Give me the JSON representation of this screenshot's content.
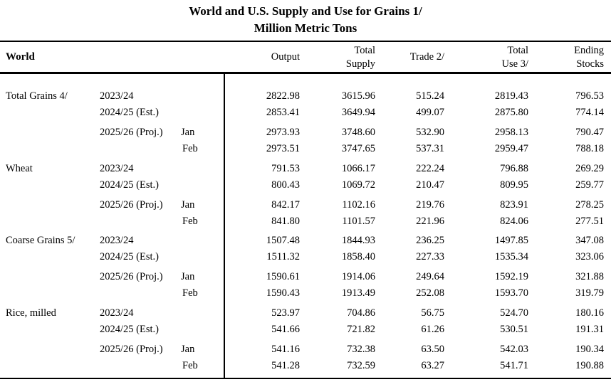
{
  "title": "World and U.S. Supply and Use for Grains  1/",
  "subtitle": "Million Metric Tons",
  "header": {
    "region": "World",
    "columns": [
      [
        "",
        "Output"
      ],
      [
        "Total",
        "Supply"
      ],
      [
        "",
        "Trade 2/"
      ],
      [
        "Total",
        "Use 3/"
      ],
      [
        "Ending",
        "Stocks"
      ]
    ]
  },
  "groups": [
    {
      "name": "Total Grains 4/",
      "rows": [
        {
          "year": "2023/24",
          "month": "",
          "values": [
            "2822.98",
            "3615.96",
            "515.24",
            "2819.43",
            "796.53"
          ]
        },
        {
          "year": "2024/25 (Est.)",
          "month": "",
          "values": [
            "2853.41",
            "3649.94",
            "499.07",
            "2875.80",
            "774.14"
          ]
        },
        {
          "year": "2025/26 (Proj.)",
          "month": "Jan",
          "values": [
            "2973.93",
            "3748.60",
            "532.90",
            "2958.13",
            "790.47"
          ]
        },
        {
          "year": "",
          "month": "Feb",
          "values": [
            "2973.51",
            "3747.65",
            "537.31",
            "2959.47",
            "788.18"
          ]
        }
      ]
    },
    {
      "name": "Wheat",
      "rows": [
        {
          "year": "2023/24",
          "month": "",
          "values": [
            "791.53",
            "1066.17",
            "222.24",
            "796.88",
            "269.29"
          ]
        },
        {
          "year": "2024/25 (Est.)",
          "month": "",
          "values": [
            "800.43",
            "1069.72",
            "210.47",
            "809.95",
            "259.77"
          ]
        },
        {
          "year": "2025/26 (Proj.)",
          "month": "Jan",
          "values": [
            "842.17",
            "1102.16",
            "219.76",
            "823.91",
            "278.25"
          ]
        },
        {
          "year": "",
          "month": "Feb",
          "values": [
            "841.80",
            "1101.57",
            "221.96",
            "824.06",
            "277.51"
          ]
        }
      ]
    },
    {
      "name": "Coarse Grains 5/",
      "rows": [
        {
          "year": "2023/24",
          "month": "",
          "values": [
            "1507.48",
            "1844.93",
            "236.25",
            "1497.85",
            "347.08"
          ]
        },
        {
          "year": "2024/25 (Est.)",
          "month": "",
          "values": [
            "1511.32",
            "1858.40",
            "227.33",
            "1535.34",
            "323.06"
          ]
        },
        {
          "year": "2025/26 (Proj.)",
          "month": "Jan",
          "values": [
            "1590.61",
            "1914.06",
            "249.64",
            "1592.19",
            "321.88"
          ]
        },
        {
          "year": "",
          "month": "Feb",
          "values": [
            "1590.43",
            "1913.49",
            "252.08",
            "1593.70",
            "319.79"
          ]
        }
      ]
    },
    {
      "name": "Rice, milled",
      "rows": [
        {
          "year": "2023/24",
          "month": "",
          "values": [
            "523.97",
            "704.86",
            "56.75",
            "524.70",
            "180.16"
          ]
        },
        {
          "year": "2024/25 (Est.)",
          "month": "",
          "values": [
            "541.66",
            "721.82",
            "61.26",
            "530.51",
            "191.31"
          ]
        },
        {
          "year": "2025/26 (Proj.)",
          "month": "Jan",
          "values": [
            "541.16",
            "732.38",
            "63.50",
            "542.03",
            "190.34"
          ]
        },
        {
          "year": "",
          "month": "Feb",
          "values": [
            "541.28",
            "732.59",
            "63.27",
            "541.71",
            "190.88"
          ]
        }
      ]
    }
  ]
}
